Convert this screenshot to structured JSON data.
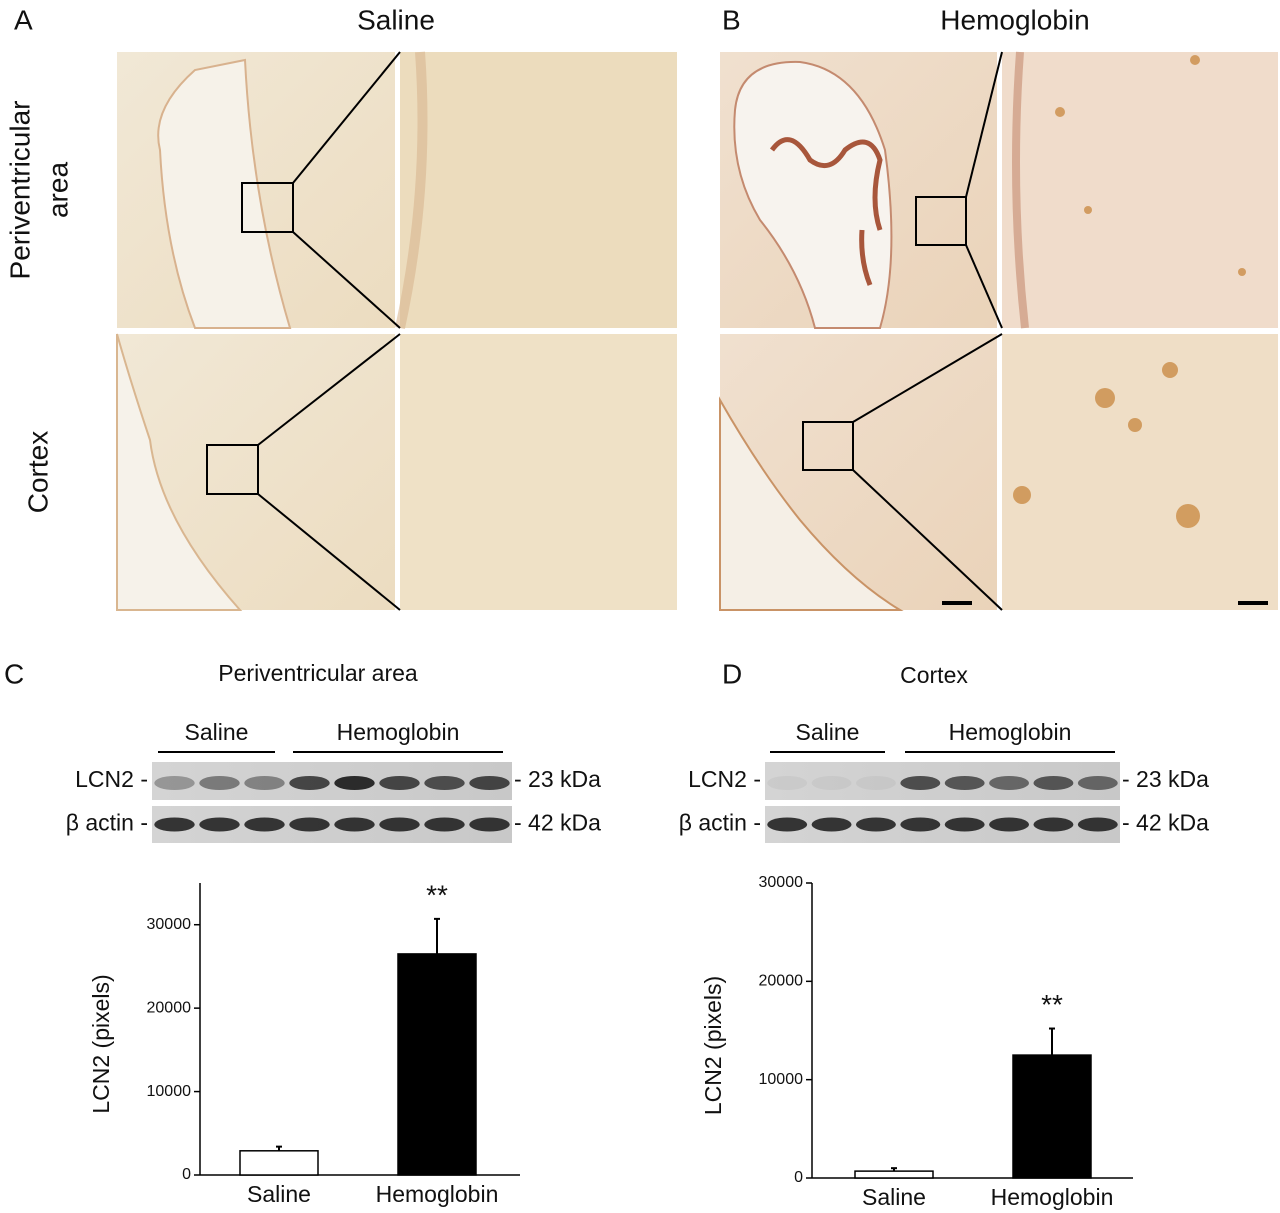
{
  "panel_letters": [
    "A",
    "B",
    "C",
    "D"
  ],
  "columns": [
    "Saline",
    "Hemoglobin"
  ],
  "rows": [
    [
      "Periventricular",
      "area"
    ],
    "Cortex"
  ],
  "blots": [
    {
      "title": "Periventricular area",
      "groups": [
        "Saline",
        "Hemoglobin"
      ],
      "row_labels": [
        "LCN2 -",
        "β actin -"
      ],
      "sizes": [
        "- 23 kDa",
        "- 42 kDa"
      ]
    },
    {
      "title": "Cortex",
      "groups": [
        "Saline",
        "Hemoglobin"
      ],
      "row_labels": [
        "LCN2 -",
        "β actin -"
      ],
      "sizes": [
        "- 23 kDa",
        "- 42 kDa"
      ]
    }
  ],
  "chart_data": [
    {
      "type": "bar",
      "ylabel": "LCN2 (pixels)",
      "categories": [
        "Saline",
        "Hemoglobin"
      ],
      "values": [
        2900,
        26500
      ],
      "errors": [
        500,
        4200
      ],
      "colors": [
        "#ffffff",
        "#000000"
      ],
      "annotation": "**",
      "ylim": [
        0,
        35000
      ],
      "yticks": [
        0,
        10000,
        20000,
        30000
      ]
    },
    {
      "type": "bar",
      "ylabel": "LCN2 (pixels)",
      "categories": [
        "Saline",
        "Hemoglobin"
      ],
      "values": [
        700,
        12500
      ],
      "errors": [
        300,
        2700
      ],
      "colors": [
        "#ffffff",
        "#000000"
      ],
      "annotation": "**",
      "ylim": [
        0,
        30000
      ],
      "yticks": [
        0,
        10000,
        20000,
        30000
      ]
    }
  ]
}
